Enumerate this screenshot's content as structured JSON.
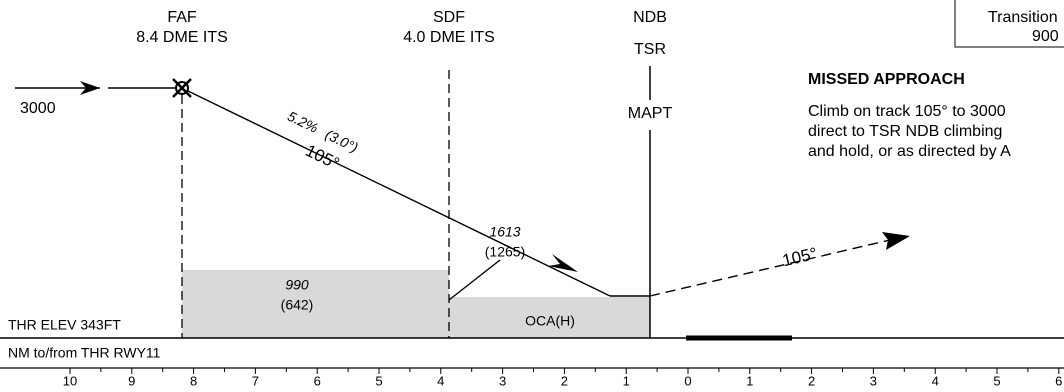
{
  "profile": {
    "faf": {
      "name": "FAF",
      "distance": "8.4 DME ITS"
    },
    "sdf": {
      "name": "SDF",
      "distance": "4.0 DME ITS"
    },
    "mapt": {
      "facility": "NDB",
      "ident": "TSR",
      "label": "MAPT"
    },
    "approach_altitude": "3000",
    "gradient": "5.2%",
    "angle": "(3.0°)",
    "final_track": "105°",
    "sdf_altitude": "1613",
    "sdf_height": "(1265)",
    "step_altitude": "990",
    "step_height": "(642)",
    "oca": "OCA(H)",
    "missed_track": "105°",
    "threshold_elevation": "THR ELEV 343FT"
  },
  "scale": {
    "title": "NM to/from THR RWY11",
    "labels": [
      "10",
      "9",
      "8",
      "7",
      "6",
      "5",
      "4",
      "3",
      "2",
      "1",
      "0",
      "1",
      "2",
      "3",
      "4",
      "5",
      "6"
    ]
  },
  "transition": {
    "label": "Transition",
    "altitude": "900"
  },
  "missed_approach": {
    "title": "MISSED APPROACH",
    "lines": [
      "Climb on track 105° to 3000",
      "direct to TSR NDB climbing",
      "and hold, or as directed by A"
    ]
  }
}
